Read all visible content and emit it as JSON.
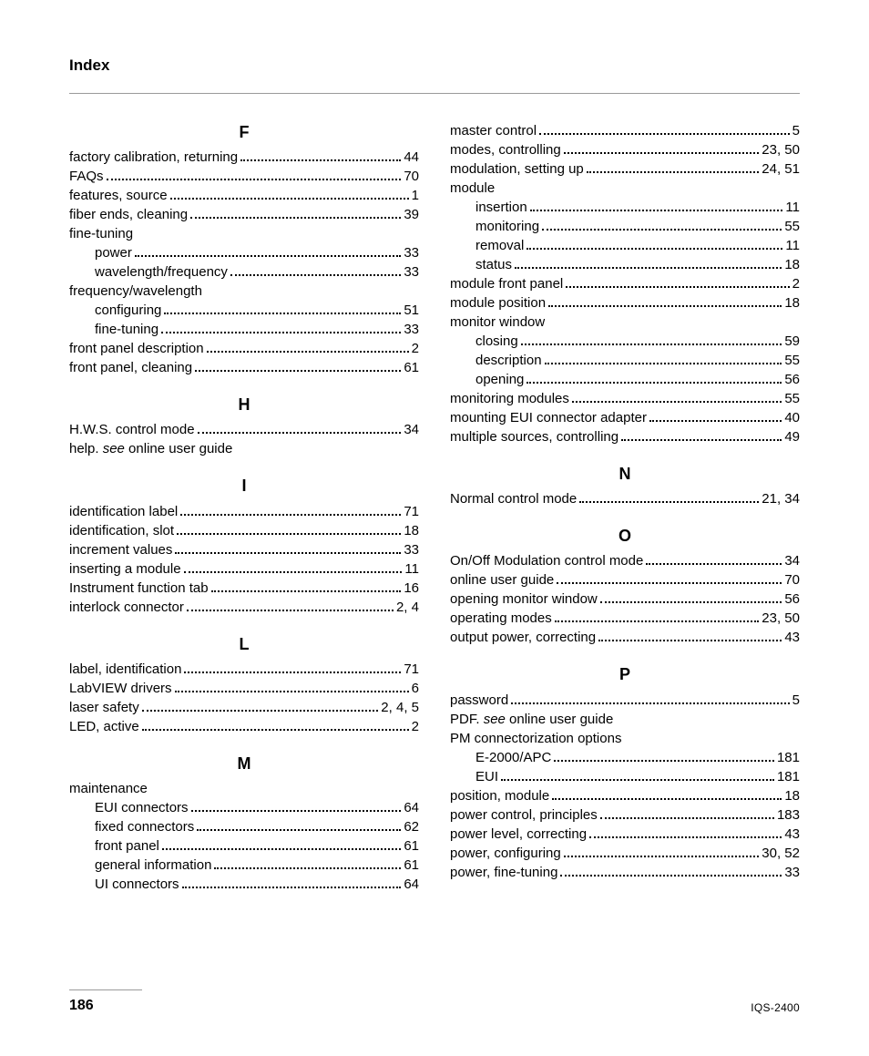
{
  "header": "Index",
  "footer": {
    "page": "186",
    "docid": "IQS-2400"
  },
  "left": [
    {
      "type": "letter",
      "text": "F",
      "first": true
    },
    {
      "type": "entry",
      "term": "factory calibration, returning",
      "page": "44"
    },
    {
      "type": "entry",
      "term": "FAQs",
      "page": "70"
    },
    {
      "type": "entry",
      "term": "features, source",
      "page": "1"
    },
    {
      "type": "entry",
      "term": "fiber ends, cleaning",
      "page": "39"
    },
    {
      "type": "nopage",
      "term": "fine-tuning"
    },
    {
      "type": "sub",
      "term": "power",
      "page": "33"
    },
    {
      "type": "sub",
      "term": "wavelength/frequency",
      "page": "33"
    },
    {
      "type": "nopage",
      "term": "frequency/wavelength"
    },
    {
      "type": "sub",
      "term": "configuring",
      "page": "51"
    },
    {
      "type": "sub",
      "term": "fine-tuning",
      "page": "33"
    },
    {
      "type": "entry",
      "term": "front panel description",
      "page": "2"
    },
    {
      "type": "entry",
      "term": "front panel, cleaning",
      "page": "61"
    },
    {
      "type": "letter",
      "text": "H"
    },
    {
      "type": "entry",
      "term": "H.W.S. control mode",
      "page": "34"
    },
    {
      "type": "see",
      "term": "help. ",
      "italic": "see",
      "rest": " online user guide"
    },
    {
      "type": "letter",
      "text": "I"
    },
    {
      "type": "entry",
      "term": "identification label",
      "page": "71"
    },
    {
      "type": "entry",
      "term": "identification, slot",
      "page": "18"
    },
    {
      "type": "entry",
      "term": "increment values",
      "page": "33"
    },
    {
      "type": "entry",
      "term": "inserting a module",
      "page": "11"
    },
    {
      "type": "entry",
      "term": "Instrument function tab",
      "page": "16"
    },
    {
      "type": "entry",
      "term": "interlock connector",
      "page": "2, 4"
    },
    {
      "type": "letter",
      "text": "L"
    },
    {
      "type": "entry",
      "term": "label, identification",
      "page": "71"
    },
    {
      "type": "entry",
      "term": "LabVIEW drivers",
      "page": "6"
    },
    {
      "type": "entry",
      "term": "laser safety",
      "page": "2, 4, 5"
    },
    {
      "type": "entry",
      "term": "LED, active",
      "page": "2"
    },
    {
      "type": "letter",
      "text": "M"
    },
    {
      "type": "nopage",
      "term": "maintenance"
    },
    {
      "type": "sub",
      "term": "EUI connectors",
      "page": "64"
    },
    {
      "type": "sub",
      "term": "fixed connectors",
      "page": "62"
    },
    {
      "type": "sub",
      "term": "front panel",
      "page": "61"
    },
    {
      "type": "sub",
      "term": "general information",
      "page": "61"
    },
    {
      "type": "sub",
      "term": "UI connectors",
      "page": "64"
    }
  ],
  "right": [
    {
      "type": "entry",
      "term": "master control",
      "page": "5"
    },
    {
      "type": "entry",
      "term": "modes, controlling",
      "page": "23, 50"
    },
    {
      "type": "entry",
      "term": "modulation, setting up",
      "page": "24, 51"
    },
    {
      "type": "nopage",
      "term": "module"
    },
    {
      "type": "sub",
      "term": "insertion",
      "page": "11"
    },
    {
      "type": "sub",
      "term": "monitoring",
      "page": "55"
    },
    {
      "type": "sub",
      "term": "removal",
      "page": "11"
    },
    {
      "type": "sub",
      "term": "status",
      "page": "18"
    },
    {
      "type": "entry",
      "term": "module front panel",
      "page": "2"
    },
    {
      "type": "entry",
      "term": "module position",
      "page": "18"
    },
    {
      "type": "nopage",
      "term": "monitor window"
    },
    {
      "type": "sub",
      "term": "closing",
      "page": "59"
    },
    {
      "type": "sub",
      "term": "description",
      "page": "55"
    },
    {
      "type": "sub",
      "term": "opening",
      "page": "56"
    },
    {
      "type": "entry",
      "term": "monitoring modules",
      "page": "55"
    },
    {
      "type": "entry",
      "term": "mounting EUI connector adapter",
      "page": "40"
    },
    {
      "type": "entry",
      "term": "multiple sources, controlling",
      "page": "49"
    },
    {
      "type": "letter",
      "text": "N"
    },
    {
      "type": "entry",
      "term": "Normal control mode",
      "page": "21, 34"
    },
    {
      "type": "letter",
      "text": "O"
    },
    {
      "type": "entry",
      "term": "On/Off Modulation control mode",
      "page": "34"
    },
    {
      "type": "entry",
      "term": "online user guide",
      "page": "70"
    },
    {
      "type": "entry",
      "term": "opening monitor window",
      "page": "56"
    },
    {
      "type": "entry",
      "term": "operating modes",
      "page": "23, 50"
    },
    {
      "type": "entry",
      "term": "output power, correcting",
      "page": "43"
    },
    {
      "type": "letter",
      "text": "P"
    },
    {
      "type": "entry",
      "term": "password",
      "page": "5"
    },
    {
      "type": "see",
      "term": "PDF. ",
      "italic": "see",
      "rest": " online user guide"
    },
    {
      "type": "nopage",
      "term": "PM connectorization options"
    },
    {
      "type": "sub",
      "term": "E-2000/APC",
      "page": "181"
    },
    {
      "type": "sub",
      "term": "EUI",
      "page": "181"
    },
    {
      "type": "entry",
      "term": "position, module",
      "page": "18"
    },
    {
      "type": "entry",
      "term": "power control, principles",
      "page": "183"
    },
    {
      "type": "entry",
      "term": "power level, correcting",
      "page": "43"
    },
    {
      "type": "entry",
      "term": "power, configuring",
      "page": "30, 52"
    },
    {
      "type": "entry",
      "term": "power, fine-tuning",
      "page": "33"
    }
  ]
}
